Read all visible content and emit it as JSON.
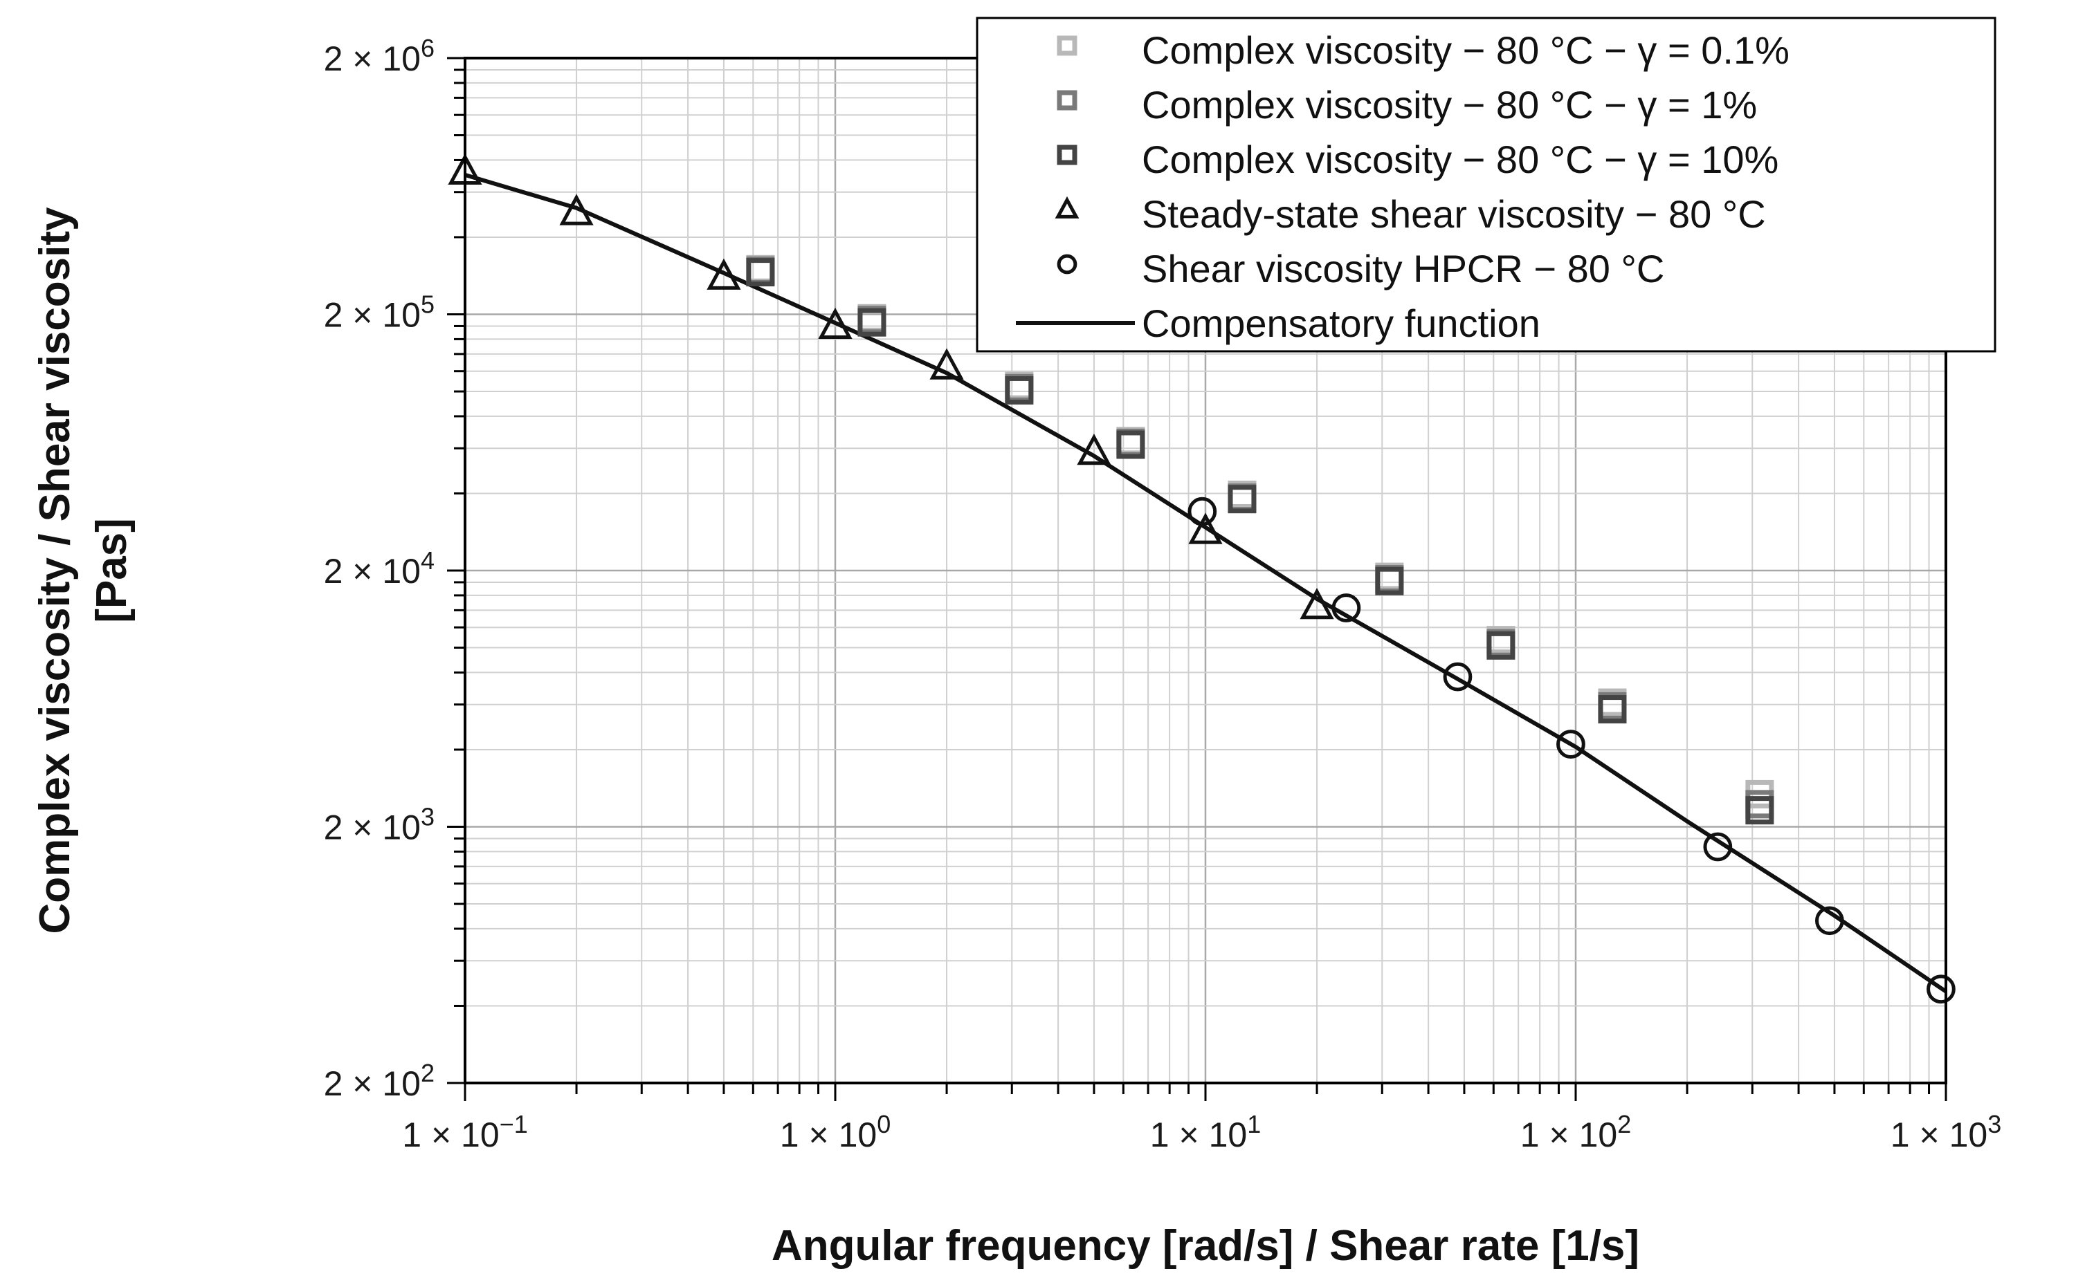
{
  "chart_data": {
    "type": "scatter",
    "scale": "log-log",
    "xlabel": "Angular frequency  [rad/s]  / Shear rate [1/s]",
    "ylabel_line1": "Complex viscosity  / Shear viscosity",
    "ylabel_line2": "[Pas]",
    "xlim": [
      0.1,
      1000
    ],
    "ylim": [
      200,
      2000000
    ],
    "grid": true,
    "legend_position": "top-right",
    "x_ticks": [
      {
        "value": 0.1,
        "mantissa": "1 × 10",
        "exp": "−1"
      },
      {
        "value": 1,
        "mantissa": "1 × 10",
        "exp": "0"
      },
      {
        "value": 10,
        "mantissa": "1 × 10",
        "exp": "1"
      },
      {
        "value": 100,
        "mantissa": "1 × 10",
        "exp": "2"
      },
      {
        "value": 1000,
        "mantissa": "1 × 10",
        "exp": "3"
      }
    ],
    "y_ticks": [
      {
        "value": 200,
        "mantissa": "2 × 10",
        "exp": "2"
      },
      {
        "value": 2000,
        "mantissa": "2 × 10",
        "exp": "3"
      },
      {
        "value": 20000,
        "mantissa": "2 × 10",
        "exp": "4"
      },
      {
        "value": 200000,
        "mantissa": "2 × 10",
        "exp": "5"
      },
      {
        "value": 2000000,
        "mantissa": "2 × 10",
        "exp": "6"
      }
    ],
    "series": [
      {
        "name": "Complex  viscosity − 80 °C − γ = 0.1%",
        "marker": "square",
        "color": "#b8b8b8",
        "points": [
          [
            0.628,
            300000
          ],
          [
            1.256,
            193000
          ],
          [
            3.14,
            105000
          ],
          [
            6.28,
            64000
          ],
          [
            12.56,
            39500
          ],
          [
            31.4,
            18900
          ],
          [
            62.8,
            10700
          ],
          [
            125.6,
            6100
          ],
          [
            314,
            2680
          ]
        ]
      },
      {
        "name": "Complex  viscosity − 80 °C − γ = 1%",
        "marker": "square",
        "color": "#7a7a7a",
        "points": [
          [
            0.628,
            296000
          ],
          [
            1.256,
            190000
          ],
          [
            3.14,
            103000
          ],
          [
            6.28,
            63000
          ],
          [
            12.56,
            38500
          ],
          [
            31.4,
            18500
          ],
          [
            62.8,
            10400
          ],
          [
            125.6,
            5900
          ],
          [
            314,
            2450
          ]
        ]
      },
      {
        "name": "Complex  viscosity − 80 °C − γ = 10%",
        "marker": "square",
        "color": "#444444",
        "points": [
          [
            0.628,
            292000
          ],
          [
            1.256,
            186000
          ],
          [
            3.14,
            101000
          ],
          [
            6.28,
            62000
          ],
          [
            12.56,
            38000
          ],
          [
            31.4,
            18200
          ],
          [
            62.8,
            10200
          ],
          [
            125.6,
            5750
          ],
          [
            314,
            2320
          ]
        ]
      },
      {
        "name": "Steady-state shear viscosity − 80 °C",
        "marker": "triangle",
        "color": "#111111",
        "points": [
          [
            0.1,
            720000
          ],
          [
            0.2,
            500000
          ],
          [
            0.5,
            280000
          ],
          [
            1,
            180000
          ],
          [
            2,
            125000
          ],
          [
            5,
            58000
          ],
          [
            10,
            28500
          ],
          [
            20,
            14500
          ]
        ]
      },
      {
        "name": "Shear viscosity HPCR  − 80 °C",
        "marker": "circle",
        "color": "#111111",
        "points": [
          [
            9.8,
            34000
          ],
          [
            24,
            14300
          ],
          [
            48,
            7700
          ],
          [
            97,
            4200
          ],
          [
            242,
            1670
          ],
          [
            485,
            860
          ],
          [
            970,
            465
          ]
        ]
      }
    ],
    "fit_line": {
      "name": "Compensatory function",
      "color": "#111111",
      "points": [
        [
          0.1,
          700000
        ],
        [
          0.2,
          520000
        ],
        [
          0.5,
          290000
        ],
        [
          1,
          185000
        ],
        [
          2,
          118000
        ],
        [
          5,
          56000
        ],
        [
          10,
          29500
        ],
        [
          20,
          15500
        ],
        [
          50,
          7300
        ],
        [
          100,
          4100
        ],
        [
          200,
          2100
        ],
        [
          500,
          900
        ],
        [
          1000,
          455
        ]
      ]
    }
  }
}
